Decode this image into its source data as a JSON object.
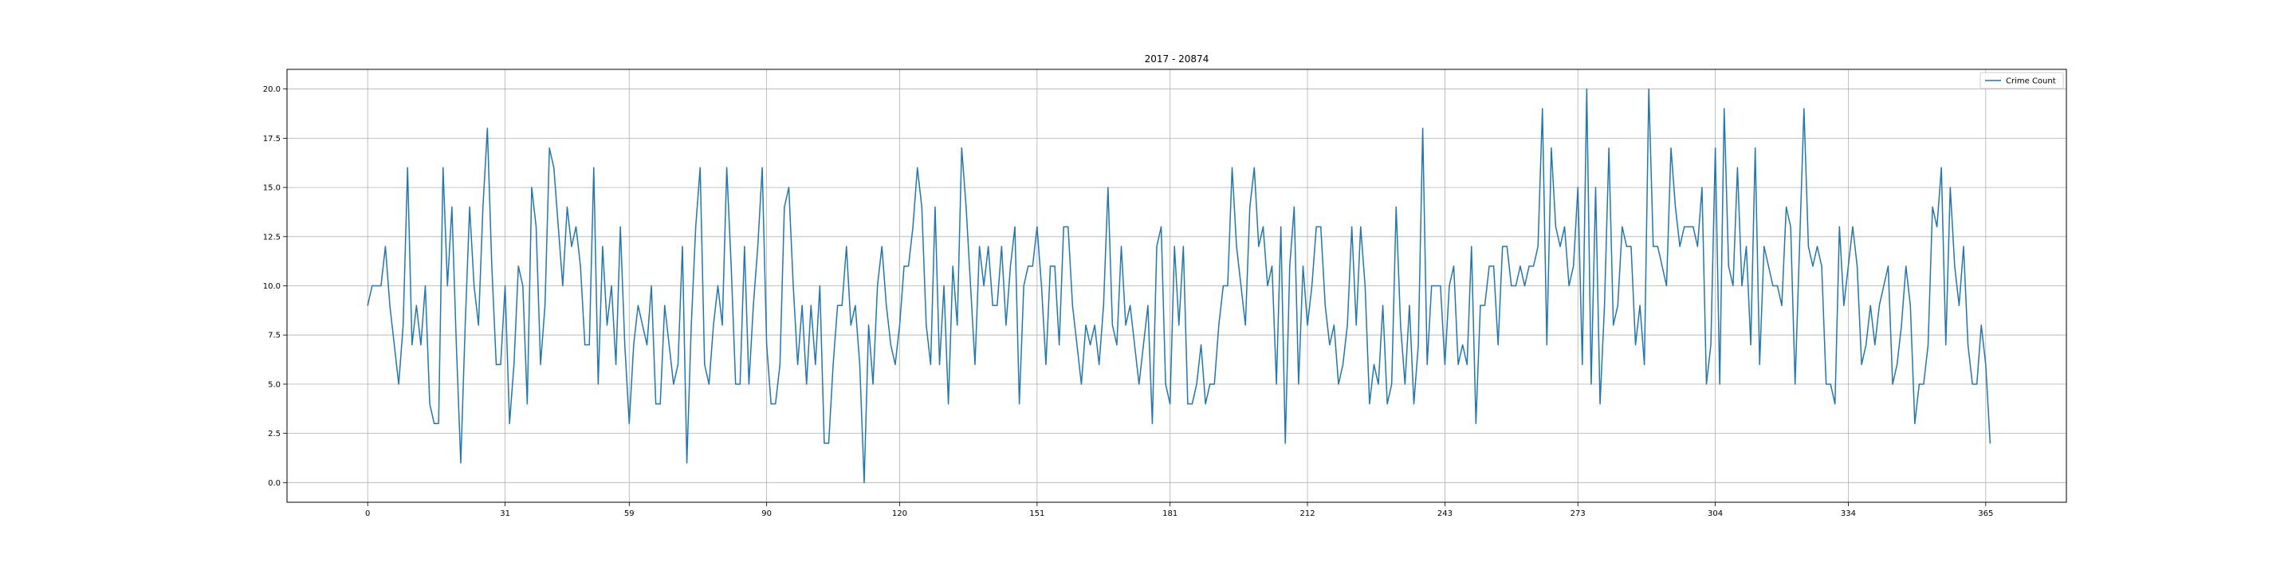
{
  "chart_data": {
    "type": "line",
    "title": "2017 - 20874",
    "xlabel": "",
    "ylabel": "",
    "xlim": [
      -18.2,
      383.2
    ],
    "ylim": [
      -1.0,
      21.0
    ],
    "grid": true,
    "legend_position": "top-right",
    "x_ticks": [
      0,
      31,
      59,
      90,
      120,
      151,
      181,
      212,
      243,
      273,
      304,
      334,
      365
    ],
    "y_ticks": [
      0.0,
      2.5,
      5.0,
      7.5,
      10.0,
      12.5,
      15.0,
      17.5,
      20.0
    ],
    "x_tick_labels": [
      "0",
      "31",
      "59",
      "90",
      "120",
      "151",
      "181",
      "212",
      "243",
      "273",
      "304",
      "334",
      "365"
    ],
    "y_tick_labels": [
      "0.0",
      "2.5",
      "5.0",
      "7.5",
      "10.0",
      "12.5",
      "15.0",
      "17.5",
      "20.0"
    ],
    "series": [
      {
        "name": "Crime Count",
        "color": "#1f77b4",
        "x_start": 0,
        "values": [
          9,
          10,
          10,
          10,
          12,
          9,
          7,
          5,
          8,
          16,
          7,
          9,
          7,
          10,
          4,
          3,
          3,
          16,
          10,
          14,
          7,
          1,
          8,
          14,
          10,
          8,
          14,
          18,
          11,
          6,
          6,
          10,
          3,
          6,
          11,
          10,
          4,
          15,
          13,
          6,
          9,
          17,
          16,
          13,
          10,
          14,
          12,
          13,
          11,
          7,
          7,
          16,
          5,
          12,
          8,
          10,
          6,
          13,
          7,
          3,
          7,
          9,
          8,
          7,
          10,
          4,
          4,
          9,
          7,
          5,
          6,
          12,
          1,
          8,
          13,
          16,
          6,
          5,
          8,
          10,
          8,
          16,
          11,
          5,
          5,
          12,
          5,
          9,
          12,
          16,
          7,
          4,
          4,
          6,
          14,
          15,
          10,
          6,
          9,
          5,
          9,
          6,
          10,
          2,
          2,
          6,
          9,
          9,
          12,
          8,
          9,
          6,
          0,
          8,
          5,
          10,
          12,
          9,
          7,
          6,
          8,
          11,
          11,
          13,
          16,
          14,
          8,
          6,
          14,
          6,
          10,
          4,
          11,
          8,
          17,
          14,
          10,
          6,
          12,
          10,
          12,
          9,
          9,
          12,
          8,
          11,
          13,
          4,
          10,
          11,
          11,
          13,
          10,
          6,
          11,
          11,
          7,
          13,
          13,
          9,
          7,
          5,
          8,
          7,
          8,
          6,
          9,
          15,
          8,
          7,
          12,
          8,
          9,
          7,
          5,
          7,
          9,
          3,
          12,
          13,
          5,
          4,
          12,
          8,
          12,
          4,
          4,
          5,
          7,
          4,
          5,
          5,
          8,
          10,
          10,
          16,
          12,
          10,
          8,
          14,
          16,
          12,
          13,
          10,
          11,
          5,
          13,
          2,
          11,
          14,
          5,
          11,
          8,
          10,
          13,
          13,
          9,
          7,
          8,
          5,
          6,
          8,
          13,
          8,
          13,
          10,
          4,
          6,
          5,
          9,
          4,
          5,
          14,
          8,
          5,
          9,
          4,
          7,
          18,
          6,
          10,
          10,
          10,
          6,
          10,
          11,
          6,
          7,
          6,
          12,
          3,
          9,
          9,
          11,
          11,
          7,
          12,
          12,
          10,
          10,
          11,
          10,
          11,
          11,
          12,
          19,
          7,
          17,
          13,
          12,
          13,
          10,
          11,
          15,
          6,
          20,
          5,
          15,
          4,
          9,
          17,
          8,
          9,
          13,
          12,
          12,
          7,
          9,
          6,
          20,
          12,
          12,
          11,
          10,
          17,
          14,
          12,
          13,
          13,
          13,
          12,
          15,
          5,
          7,
          17,
          5,
          19,
          11,
          10,
          16,
          10,
          12,
          7,
          17,
          6,
          12,
          11,
          10,
          10,
          9,
          14,
          13,
          5,
          12,
          19,
          12,
          11,
          12,
          11,
          5,
          5,
          4,
          13,
          9,
          11,
          13,
          11,
          6,
          7,
          9,
          7,
          9,
          10,
          11,
          5,
          6,
          8,
          11,
          9,
          3,
          5,
          5,
          7,
          14,
          13,
          16,
          7,
          15,
          11,
          9,
          12,
          7,
          5,
          5,
          8,
          6,
          2
        ]
      }
    ]
  }
}
